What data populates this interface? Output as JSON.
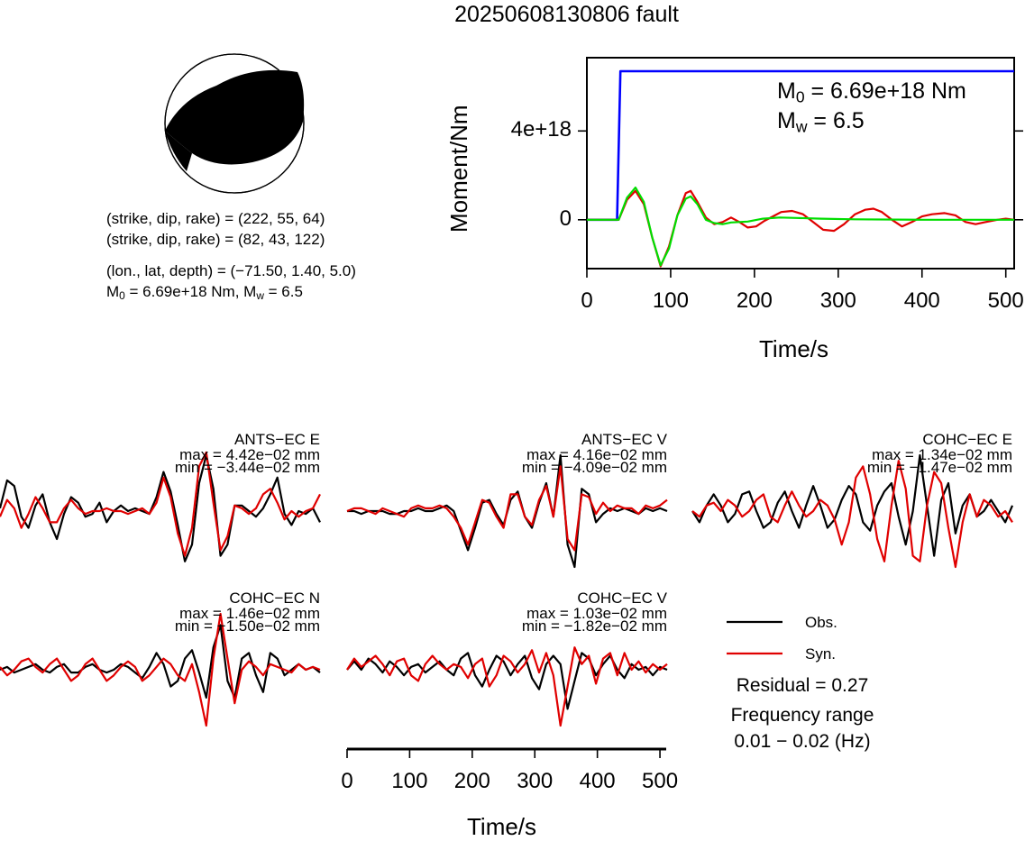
{
  "title": "20250608130806 fault",
  "mechanism": {
    "plane1": "(strike, dip, rake) = (222, 55, 64)",
    "plane2": "(strike, dip, rake) = (82, 43, 122)",
    "location": "(lon., lat, depth) = (−71.50, 1.40, 5.0)",
    "m0_prefix": "M",
    "m0_sub": "0",
    "m0_rest": " = 6.69e+18 Nm, M",
    "mw_sub": "w",
    "mw_rest": " = 6.5"
  },
  "moment_panel": {
    "m0_text": " = 6.69e+18 Nm",
    "mw_text": " = 6.5",
    "m_letter": "M",
    "m0_sub": "0",
    "mw_sub": "w"
  },
  "stations": [
    {
      "name": "ANTS−EC E",
      "max": "max = 4.42e−02 mm",
      "min": "min = −3.44e−02 mm"
    },
    {
      "name": "ANTS−EC V",
      "max": "max = 4.16e−02 mm",
      "min": "min = −4.09e−02 mm"
    },
    {
      "name": "COHC−EC E",
      "max": "max = 1.34e−02 mm",
      "min": "min = −1.47e−02 mm"
    },
    {
      "name": "COHC−EC N",
      "max": "max = 1.46e−02 mm",
      "min": "min = −1.50e−02 mm"
    },
    {
      "name": "COHC−EC V",
      "max": "max = 1.03e−02 mm",
      "min": "min = −1.82e−02 mm"
    }
  ],
  "legend": {
    "obs": "Obs.",
    "syn": "Syn."
  },
  "residual": "Residual = 0.27",
  "freq_label": "Frequency range",
  "freq_value": "0.01 − 0.02 (Hz)",
  "colors": {
    "obs": "#000000",
    "syn": "#e00000",
    "moment": "#0000ff",
    "stf_syn": "#00dd00"
  },
  "chart_data": [
    {
      "type": "line",
      "xlabel": "Time/s",
      "ylabel": "Moment/Nm",
      "xlim": [
        0,
        510
      ],
      "xticks": [
        0,
        100,
        200,
        300,
        400,
        500
      ],
      "yticks": [
        0,
        4e+18
      ],
      "ytick_labels": [
        "0",
        "4e+18"
      ],
      "ylim": [
        -2.2e+18,
        7.3e+18
      ],
      "series": [
        {
          "name": "moment",
          "color": "#0000ff",
          "x": [
            0,
            36,
            40,
            510
          ],
          "y": [
            0,
            0,
            6.69e+18,
            6.69e+18
          ]
        },
        {
          "name": "stf_obs",
          "color": "#e00000",
          "x": [
            0,
            20,
            38,
            48,
            58,
            68,
            78,
            88,
            98,
            108,
            118,
            124,
            132,
            142,
            152,
            162,
            172,
            182,
            192,
            202,
            212,
            222,
            232,
            245,
            258,
            270,
            282,
            295,
            307,
            320,
            332,
            342,
            352,
            364,
            376,
            388,
            400,
            412,
            427,
            440,
            452,
            464,
            476,
            490,
            500,
            510
          ],
          "y": [
            0,
            0,
            0,
            9e+17,
            1.3e+18,
            7e+17,
            -8e+17,
            -2.1e+18,
            -1.2e+18,
            2e+17,
            1.2e+18,
            1.3e+18,
            8e+17,
            1e+17,
            -2e+17,
            -1e+17,
            1e+17,
            -1e+17,
            -3.5e+17,
            -3e+17,
            -5e+16,
            1.5e+17,
            3.5e+17,
            4e+17,
            2.5e+17,
            -1e+17,
            -4.5e+17,
            -5e+17,
            -2e+17,
            2.5e+17,
            4.5e+17,
            5e+17,
            3.5e+17,
            0.0,
            -3e+17,
            -1e+17,
            1.5e+17,
            2.5e+17,
            3e+17,
            2e+17,
            -1e+17,
            -2e+17,
            -1e+17,
            0.0,
            5e+16,
            0.0
          ]
        },
        {
          "name": "stf_syn",
          "color": "#00dd00",
          "x": [
            0,
            20,
            38,
            48,
            58,
            68,
            78,
            88,
            98,
            108,
            118,
            124,
            132,
            142,
            152,
            162,
            172,
            182,
            192,
            210,
            230,
            250,
            280,
            320,
            400,
            510
          ],
          "y": [
            0,
            0,
            0,
            1e+18,
            1.45e+18,
            8e+17,
            -8e+17,
            -2.05e+18,
            -1.3e+18,
            2e+17,
            9.5e+17,
            1.05e+18,
            7e+17,
            0.0,
            -1.5e+17,
            -2e+17,
            -1.2e+17,
            -1e+17,
            -8e+16,
            5e+16,
            1e+17,
            8e+16,
            5e+16,
            2e+16,
            0.0,
            0.0
          ]
        }
      ]
    },
    {
      "type": "line",
      "xlabel": "Time/s",
      "xlim": [
        0,
        510
      ],
      "xticks": [
        0,
        100,
        200,
        300,
        400,
        500
      ],
      "waveforms": [
        {
          "station": "ANTS−EC E",
          "min_max": [
            -0.0344,
            0.0442
          ],
          "obs": [
            0.05,
            0.55,
            0.45,
            -0.1,
            -0.3,
            0.1,
            0.3,
            -0.2,
            -0.5,
            -0.05,
            0.25,
            0.15,
            -0.1,
            -0.05,
            0.15,
            -0.2,
            0.0,
            0.1,
            0.0,
            0.05,
            0.0,
            -0.05,
            0.25,
            0.7,
            0.35,
            -0.25,
            -0.9,
            -0.6,
            0.5,
            1.0,
            0.4,
            -0.8,
            -0.6,
            0.1,
            0.1,
            0.0,
            -0.1,
            0.05,
            0.3,
            0.6,
            -0.05,
            -0.25,
            0.0,
            -0.05,
            0.05,
            -0.2
          ],
          "syn": [
            -0.1,
            0.2,
            0.05,
            -0.3,
            -0.05,
            0.25,
            0.05,
            -0.2,
            -0.2,
            0.05,
            0.2,
            0.05,
            -0.05,
            0.0,
            0.0,
            0.05,
            0.0,
            0.0,
            -0.05,
            0.0,
            0.05,
            -0.05,
            0.15,
            0.6,
            0.25,
            -0.4,
            -0.8,
            -0.3,
            0.8,
            1.05,
            0.15,
            -0.7,
            -0.45,
            0.1,
            0.05,
            -0.05,
            0.05,
            0.3,
            0.4,
            0.15,
            -0.15,
            0.0,
            -0.1,
            0.0,
            0.05,
            0.3
          ]
        },
        {
          "station": "ANTS−EC V",
          "min_max": [
            -0.0409,
            0.0416
          ],
          "obs": [
            0.0,
            0.0,
            -0.05,
            0.0,
            0.0,
            0.0,
            -0.05,
            -0.05,
            0.0,
            0.0,
            0.05,
            0.0,
            0.0,
            0.05,
            0.1,
            0.0,
            -0.35,
            -0.7,
            -0.3,
            0.15,
            0.2,
            -0.05,
            -0.25,
            0.2,
            0.35,
            -0.1,
            -0.3,
            0.15,
            0.5,
            -0.1,
            1.0,
            -0.6,
            -1.0,
            0.4,
            0.3,
            -0.2,
            -0.05,
            0.05,
            0.0,
            0.05,
            0.0,
            -0.05,
            0.05,
            0.0,
            0.05,
            0.0
          ],
          "syn": [
            0.0,
            0.05,
            0.05,
            0.0,
            -0.05,
            0.05,
            0.0,
            -0.05,
            -0.1,
            0.05,
            0.1,
            0.05,
            0.05,
            0.1,
            0.05,
            -0.1,
            -0.3,
            -0.6,
            -0.2,
            0.2,
            0.15,
            -0.1,
            -0.3,
            0.3,
            0.3,
            -0.1,
            -0.25,
            0.2,
            0.45,
            -0.1,
            0.8,
            -0.5,
            -0.7,
            0.3,
            0.25,
            -0.05,
            0.15,
            0.0,
            0.1,
            0.05,
            0.05,
            -0.05,
            0.1,
            0.05,
            0.1,
            0.2
          ]
        },
        {
          "station": "COHC−EC E",
          "min_max": [
            -0.0147,
            0.0134
          ],
          "obs": [
            0.0,
            -0.2,
            0.1,
            0.3,
            0.1,
            -0.2,
            -0.05,
            0.3,
            0.35,
            0.0,
            -0.3,
            -0.2,
            0.15,
            0.35,
            0.0,
            -0.3,
            0.1,
            0.45,
            0.1,
            -0.3,
            -0.15,
            0.2,
            0.45,
            0.3,
            -0.2,
            -0.35,
            0.1,
            0.35,
            0.5,
            -0.1,
            -0.6,
            0.0,
            1.0,
            0.1,
            -0.8,
            0.2,
            0.5,
            -0.4,
            0.1,
            0.3,
            -0.1,
            0.0,
            0.2,
            0.0,
            -0.2,
            0.1
          ],
          "syn": [
            0.0,
            -0.1,
            0.1,
            0.15,
            0.0,
            0.2,
            0.1,
            -0.1,
            0.0,
            0.2,
            0.3,
            -0.1,
            -0.2,
            0.1,
            0.35,
            0.1,
            -0.1,
            0.0,
            0.2,
            0.1,
            -0.15,
            -0.6,
            -0.2,
            0.6,
            0.8,
            0.3,
            -0.5,
            -0.9,
            0.1,
            0.9,
            0.4,
            -0.8,
            -0.9,
            0.1,
            0.7,
            0.5,
            -0.3,
            -1.0,
            -0.2,
            0.3,
            -0.1,
            0.2,
            0.1,
            -0.1,
            0.0,
            -0.2
          ]
        },
        {
          "station": "COHC−EC N",
          "min_max": [
            -0.015,
            0.0146
          ],
          "obs": [
            0.0,
            0.05,
            -0.05,
            0.0,
            0.05,
            0.1,
            0.0,
            -0.05,
            0.05,
            0.1,
            -0.05,
            -0.05,
            0.05,
            0.1,
            0.0,
            -0.05,
            0.0,
            0.1,
            0.05,
            -0.05,
            -0.15,
            0.05,
            0.3,
            0.1,
            -0.3,
            -0.2,
            0.2,
            0.35,
            -0.05,
            -0.5,
            0.4,
            0.8,
            -0.2,
            -0.5,
            0.2,
            0.3,
            -0.1,
            -0.4,
            0.3,
            0.2,
            -0.1,
            0.0,
            0.1,
            0.0,
            0.05,
            -0.05
          ],
          "syn": [
            0.05,
            -0.1,
            0.0,
            0.15,
            0.2,
            0.05,
            -0.05,
            0.1,
            0.2,
            0.0,
            -0.2,
            -0.1,
            0.1,
            0.2,
            0.0,
            -0.2,
            -0.1,
            0.05,
            0.15,
            0.05,
            -0.2,
            -0.1,
            0.05,
            0.2,
            0.1,
            -0.1,
            -0.2,
            0.1,
            -0.4,
            -1.0,
            0.2,
            1.0,
            0.2,
            -0.6,
            0.0,
            0.15,
            0.05,
            -0.1,
            0.1,
            0.05,
            0.0,
            -0.05,
            0.1,
            0.0,
            0.05,
            0.0
          ]
        },
        {
          "station": "COHC−EC V",
          "min_max": [
            -0.0182,
            0.0103
          ],
          "obs": [
            0.0,
            0.15,
            0.0,
            0.2,
            0.1,
            -0.05,
            0.15,
            0.05,
            -0.1,
            0.05,
            0.1,
            -0.05,
            0.05,
            0.15,
            0.0,
            -0.1,
            0.2,
            0.3,
            -0.1,
            -0.3,
            0.0,
            0.25,
            0.15,
            -0.1,
            0.1,
            0.25,
            -0.15,
            -0.35,
            0.1,
            0.25,
            0.1,
            -0.7,
            -0.2,
            0.3,
            0.2,
            -0.1,
            0.1,
            0.25,
            0.0,
            -0.15,
            0.1,
            0.0,
            0.05,
            -0.1,
            0.05,
            0.0
          ],
          "syn": [
            0.0,
            0.2,
            0.05,
            0.15,
            0.25,
            0.1,
            -0.1,
            0.15,
            0.2,
            -0.1,
            -0.2,
            0.1,
            0.25,
            0.1,
            0.0,
            0.1,
            0.05,
            -0.15,
            0.1,
            0.2,
            -0.3,
            -0.1,
            0.25,
            0.15,
            -0.05,
            0.1,
            0.35,
            -0.05,
            0.3,
            -0.1,
            -1.0,
            -0.3,
            0.4,
            0.1,
            0.25,
            -0.25,
            0.2,
            0.3,
            -0.1,
            0.3,
            0.0,
            0.15,
            -0.05,
            0.1,
            0.0,
            0.1
          ]
        }
      ]
    }
  ]
}
